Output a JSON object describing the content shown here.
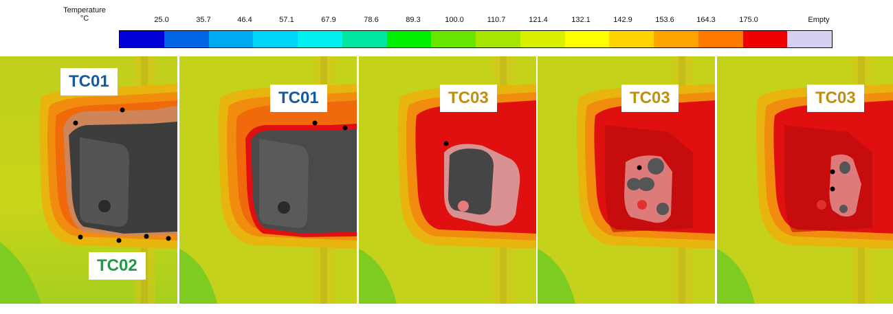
{
  "legend": {
    "title_line1": "Temperature",
    "title_line2": "°C",
    "ticks": [
      "25.0",
      "35.7",
      "46.4",
      "57.1",
      "67.9",
      "78.6",
      "89.3",
      "100.0",
      "110.7",
      "121.4",
      "132.1",
      "142.9",
      "153.6",
      "164.3",
      "175.0",
      "Empty"
    ],
    "colors": [
      "#0000d6",
      "#0066e6",
      "#00aaf2",
      "#00d4f8",
      "#00f0f0",
      "#00e6a0",
      "#00ee00",
      "#66e600",
      "#a6e600",
      "#d8f000",
      "#ffff00",
      "#ffd400",
      "#ffa500",
      "#ff7a00",
      "#ee0000",
      "#d8d0f0"
    ]
  },
  "panels": [
    {
      "labels": [
        {
          "text": "TC01",
          "color": "blue"
        },
        {
          "text": "TC02",
          "color": "green"
        }
      ]
    },
    {
      "labels": [
        {
          "text": "TC01",
          "color": "blue"
        }
      ]
    },
    {
      "labels": [
        {
          "text": "TC03",
          "color": "gold"
        }
      ]
    },
    {
      "labels": [
        {
          "text": "TC03",
          "color": "gold"
        }
      ]
    },
    {
      "labels": [
        {
          "text": "TC03",
          "color": "gold"
        }
      ]
    }
  ]
}
